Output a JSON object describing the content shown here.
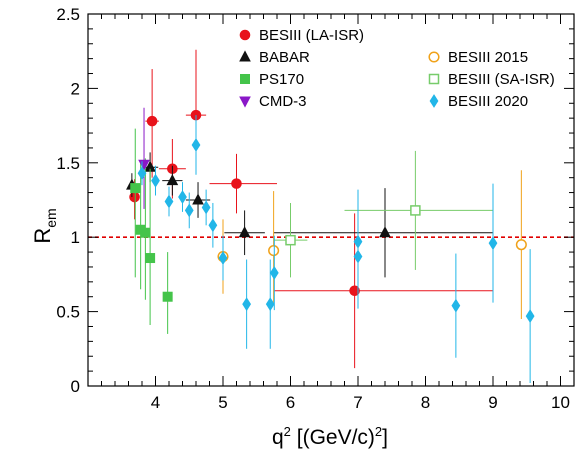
{
  "chart_data": {
    "type": "scatter",
    "xlabel": "q² [(GeV/c)²]",
    "xlabel_parts": {
      "pre": "q",
      "sup1": "2",
      "mid": " [(GeV/c)",
      "sup2": "2",
      "post": "]"
    },
    "ylabel": "R_em",
    "ylabel_parts": {
      "main": "R",
      "sub": "em"
    },
    "xlim": [
      3.0,
      10.2
    ],
    "ylim": [
      0,
      2.5
    ],
    "xticks": [
      4,
      5,
      6,
      7,
      8,
      9,
      10
    ],
    "yticks": [
      0,
      0.5,
      1,
      1.5,
      2,
      2.5
    ],
    "xtick_labels": [
      "4",
      "5",
      "6",
      "7",
      "8",
      "9",
      "10"
    ],
    "ytick_labels": [
      "0",
      "0.5",
      "1",
      "1.5",
      "2",
      "2.5"
    ],
    "reference_line": {
      "y": 1,
      "color": "#e00000",
      "style": "dashed"
    },
    "grid": false,
    "legend_position": "top",
    "series": [
      {
        "name": "BESIII (LA-ISR)",
        "marker": "circle",
        "filled": true,
        "color": "#e8131b",
        "points": [
          {
            "x": 3.69,
            "y": 1.27,
            "xerr": [
              0.04,
              0.04
            ],
            "yerr": [
              0.15,
              0.12
            ]
          },
          {
            "x": 3.95,
            "y": 1.78,
            "xerr": [
              0.1,
              0.1
            ],
            "yerr": [
              0.38,
              0.35
            ]
          },
          {
            "x": 4.25,
            "y": 1.46,
            "xerr": [
              0.2,
              0.2
            ],
            "yerr": [
              0.2,
              0.2
            ]
          },
          {
            "x": 4.6,
            "y": 1.82,
            "xerr": [
              0.15,
              0.15
            ],
            "yerr": [
              0.35,
              0.44
            ]
          },
          {
            "x": 5.2,
            "y": 1.36,
            "xerr": [
              0.4,
              0.6
            ],
            "yerr": [
              0.2,
              0.2
            ]
          },
          {
            "x": 6.95,
            "y": 0.64,
            "xerr": [
              1.2,
              2.05
            ],
            "yerr": [
              0.52,
              0.52
            ]
          }
        ]
      },
      {
        "name": "BABAR",
        "marker": "triangle",
        "filled": true,
        "color": "#111111",
        "points": [
          {
            "x": 3.65,
            "y": 1.35,
            "xerr": [
              0.05,
              0.05
            ],
            "yerr": [
              0.08,
              0.08
            ]
          },
          {
            "x": 3.92,
            "y": 1.47,
            "xerr": [
              0.12,
              0.12
            ],
            "yerr": [
              0.1,
              0.1
            ]
          },
          {
            "x": 4.25,
            "y": 1.38,
            "xerr": [
              0.15,
              0.15
            ],
            "yerr": [
              0.1,
              0.1
            ]
          },
          {
            "x": 4.63,
            "y": 1.25,
            "xerr": [
              0.18,
              0.18
            ],
            "yerr": [
              0.12,
              0.12
            ]
          },
          {
            "x": 5.32,
            "y": 1.03,
            "xerr": [
              0.3,
              0.3
            ],
            "yerr": [
              0.15,
              0.15
            ]
          },
          {
            "x": 7.4,
            "y": 1.03,
            "xerr": [
              1.65,
              1.6
            ],
            "yerr": [
              0.3,
              0.3
            ]
          }
        ]
      },
      {
        "name": "PS170",
        "marker": "square",
        "filled": true,
        "color": "#44c44a",
        "points": [
          {
            "x": 3.7,
            "y": 1.33,
            "xerr": [
              0,
              0
            ],
            "yerr": [
              0.6,
              0.4
            ]
          },
          {
            "x": 3.78,
            "y": 1.05,
            "xerr": [
              0,
              0
            ],
            "yerr": [
              0.4,
              0.45
            ]
          },
          {
            "x": 3.85,
            "y": 1.03,
            "xerr": [
              0,
              0
            ],
            "yerr": [
              0.45,
              0.5
            ]
          },
          {
            "x": 3.92,
            "y": 0.86,
            "xerr": [
              0,
              0
            ],
            "yerr": [
              0.45,
              0.6
            ]
          },
          {
            "x": 4.18,
            "y": 0.6,
            "xerr": [
              0,
              0
            ],
            "yerr": [
              0.25,
              0.3
            ]
          }
        ]
      },
      {
        "name": "CMD-3",
        "marker": "triangle-down",
        "filled": true,
        "color": "#8a18c8",
        "points": [
          {
            "x": 3.83,
            "y": 1.49,
            "xerr": [
              0,
              0
            ],
            "yerr": [
              0.3,
              0.38
            ]
          }
        ]
      },
      {
        "name": "BESIII 2015",
        "marker": "circle",
        "filled": false,
        "color": "#f0a21a",
        "points": [
          {
            "x": 5.0,
            "y": 0.87,
            "xerr": [
              0,
              0
            ],
            "yerr": [
              0.25,
              0.25
            ]
          },
          {
            "x": 5.75,
            "y": 0.91,
            "xerr": [
              0,
              0
            ],
            "yerr": [
              0.35,
              0.4
            ]
          },
          {
            "x": 9.42,
            "y": 0.95,
            "xerr": [
              0,
              0
            ],
            "yerr": [
              0.5,
              0.5
            ]
          }
        ]
      },
      {
        "name": "BESIII (SA-ISR)",
        "marker": "square",
        "filled": false,
        "color": "#77cc6a",
        "points": [
          {
            "x": 6.0,
            "y": 0.98,
            "xerr": [
              0.25,
              0.25
            ],
            "yerr": [
              0.25,
              0.25
            ]
          },
          {
            "x": 7.85,
            "y": 1.18,
            "xerr": [
              1.05,
              1.15
            ],
            "yerr": [
              0.4,
              0.4
            ]
          }
        ]
      },
      {
        "name": "BESIII 2020",
        "marker": "diamond",
        "filled": true,
        "color": "#22b6e8",
        "points": [
          {
            "x": 3.8,
            "y": 1.43,
            "xerr": [
              0,
              0
            ],
            "yerr": [
              0.08,
              0.08
            ]
          },
          {
            "x": 4.0,
            "y": 1.38,
            "xerr": [
              0,
              0
            ],
            "yerr": [
              0.1,
              0.1
            ]
          },
          {
            "x": 4.2,
            "y": 1.24,
            "xerr": [
              0,
              0
            ],
            "yerr": [
              0.1,
              0.1
            ]
          },
          {
            "x": 4.4,
            "y": 1.27,
            "xerr": [
              0,
              0
            ],
            "yerr": [
              0.1,
              0.1
            ]
          },
          {
            "x": 4.5,
            "y": 1.18,
            "xerr": [
              0,
              0
            ],
            "yerr": [
              0.12,
              0.12
            ]
          },
          {
            "x": 4.6,
            "y": 1.62,
            "xerr": [
              0,
              0
            ],
            "yerr": [
              0.2,
              0.2
            ]
          },
          {
            "x": 4.75,
            "y": 1.2,
            "xerr": [
              0,
              0
            ],
            "yerr": [
              0.12,
              0.12
            ]
          },
          {
            "x": 4.85,
            "y": 1.08,
            "xerr": [
              0,
              0
            ],
            "yerr": [
              0.15,
              0.15
            ]
          },
          {
            "x": 5.0,
            "y": 0.86,
            "xerr": [
              0,
              0
            ],
            "yerr": [
              0.15,
              0.15
            ]
          },
          {
            "x": 5.35,
            "y": 0.55,
            "xerr": [
              0,
              0
            ],
            "yerr": [
              0.3,
              0.3
            ]
          },
          {
            "x": 5.7,
            "y": 0.55,
            "xerr": [
              0,
              0
            ],
            "yerr": [
              0.3,
              0.3
            ]
          },
          {
            "x": 5.76,
            "y": 0.76,
            "xerr": [
              0,
              0
            ],
            "yerr": [
              0.25,
              0.25
            ]
          },
          {
            "x": 7.0,
            "y": 0.97,
            "xerr": [
              0,
              0
            ],
            "yerr": [
              0.35,
              0.35
            ]
          },
          {
            "x": 7.0,
            "y": 0.87,
            "xerr": [
              0,
              0
            ],
            "yerr": [
              0.35,
              0.35
            ]
          },
          {
            "x": 8.45,
            "y": 0.54,
            "xerr": [
              0,
              0
            ],
            "yerr": [
              0.35,
              0.35
            ]
          },
          {
            "x": 9.0,
            "y": 0.96,
            "xerr": [
              0,
              0
            ],
            "yerr": [
              0.4,
              0.4
            ]
          },
          {
            "x": 9.55,
            "y": 0.47,
            "xerr": [
              0,
              0
            ],
            "yerr": [
              0.45,
              0.45
            ]
          }
        ]
      }
    ]
  }
}
